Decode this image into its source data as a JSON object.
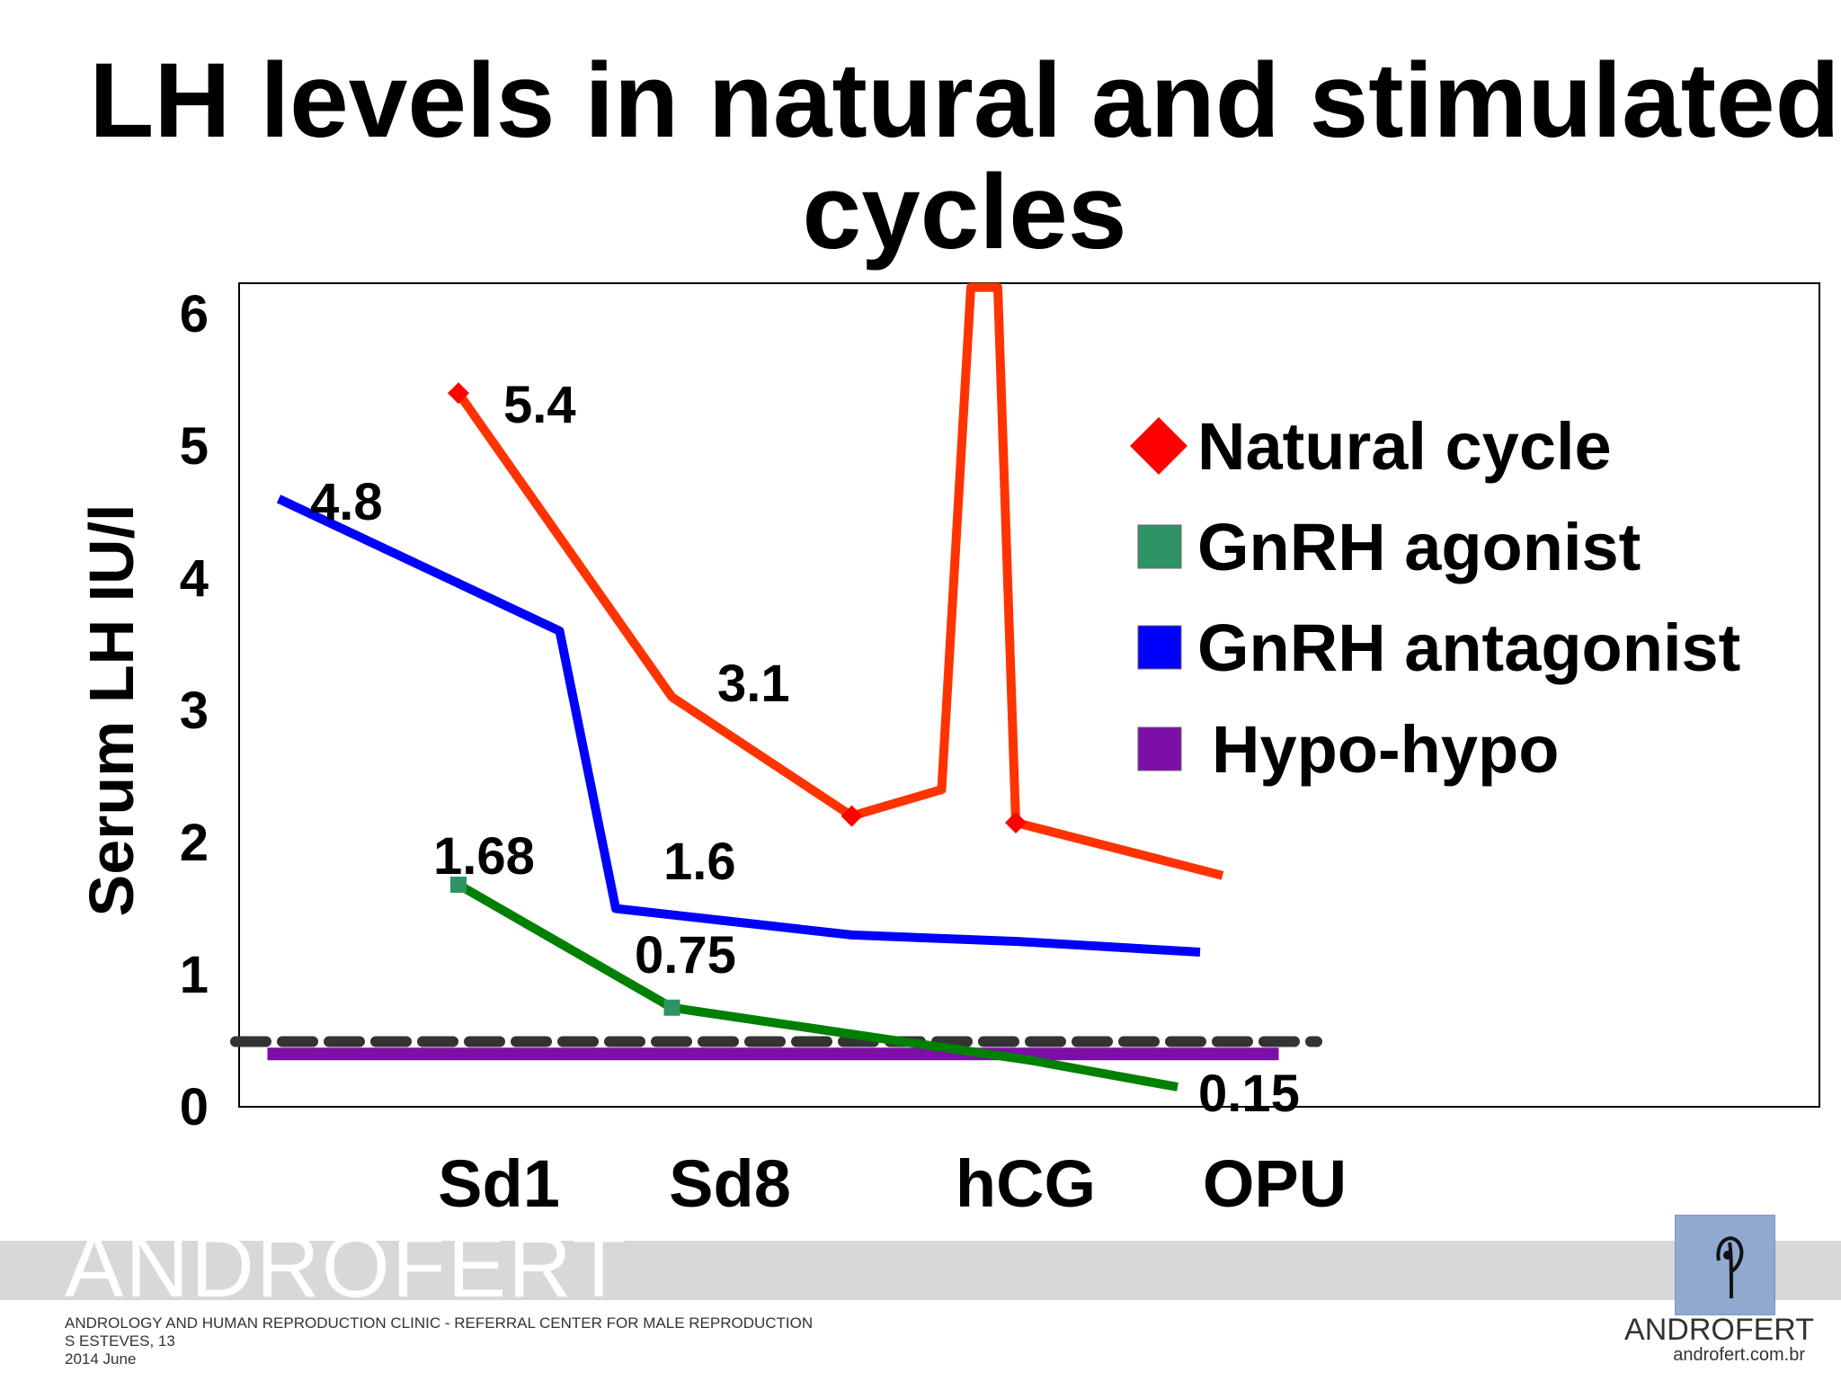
{
  "title": "LH levels in natural and stimulated cycles",
  "chart_data": {
    "type": "line",
    "title": "LH levels in natural and stimulated cycles",
    "ylabel": "Serum LH IU/l",
    "xlabel": "",
    "ylim": [
      0,
      6
    ],
    "yticks": [
      "0",
      "1",
      "2",
      "3",
      "4",
      "5",
      "6"
    ],
    "categories": [
      "Sd1",
      "Sd8",
      "hCG",
      "OPU"
    ],
    "grid": false,
    "legend_position": "right",
    "series": [
      {
        "name": "Natural cycle",
        "color": "#ff3300",
        "marker_color": "#ff0000",
        "marker": "diamond",
        "points": [
          {
            "x": 1.0,
            "y": 5.4
          },
          {
            "x": 1.95,
            "y": 3.1
          },
          {
            "x": 2.75,
            "y": 2.2
          },
          {
            "x": 3.15,
            "y": 2.4
          },
          {
            "x": 3.28,
            "y": 6.2
          },
          {
            "x": 3.4,
            "y": 6.2
          },
          {
            "x": 3.48,
            "y": 2.15
          },
          {
            "x": 4.4,
            "y": 1.75
          }
        ]
      },
      {
        "name": "GnRH agonist",
        "color": "#008000",
        "marker_color": "#2e9466",
        "marker": "square",
        "points": [
          {
            "x": 1.0,
            "y": 1.68
          },
          {
            "x": 1.95,
            "y": 0.75
          },
          {
            "x": 2.75,
            "y": 0.55
          },
          {
            "x": 3.55,
            "y": 0.35
          },
          {
            "x": 4.2,
            "y": 0.15
          }
        ]
      },
      {
        "name": "GnRH antagonist",
        "color": "#0000ff",
        "marker_color": "#0000ff",
        "marker": "square",
        "points": [
          {
            "x": 0.2,
            "y": 4.6
          },
          {
            "x": 1.45,
            "y": 3.6
          },
          {
            "x": 1.7,
            "y": 1.5
          },
          {
            "x": 2.75,
            "y": 1.3
          },
          {
            "x": 3.5,
            "y": 1.25
          },
          {
            "x": 4.3,
            "y": 1.17
          }
        ]
      },
      {
        "name": "Hypo-hypo",
        "color": "#7c0fa6",
        "marker_color": "#7c0fa6",
        "marker": "square",
        "points": [
          {
            "x": 0.15,
            "y": 0.4
          },
          {
            "x": 4.65,
            "y": 0.4
          }
        ]
      }
    ],
    "reference_line": {
      "y": 0.5,
      "style": "dashed",
      "color": "#333333"
    },
    "annotations": [
      "5.4",
      "3.1",
      "4.8",
      "1.68",
      "1.6",
      "0.75",
      "0.15"
    ]
  },
  "footer": {
    "brand": "ANDROFERT",
    "line1": "ANDROLOGY AND HUMAN REPRODUCTION CLINIC - REFERRAL CENTER FOR MALE REPRODUCTION",
    "line2": "S ESTEVES, 13",
    "line3": "2014 June",
    "logo_name": "ANDROFERT",
    "logo_url": "androfert.com.br"
  }
}
